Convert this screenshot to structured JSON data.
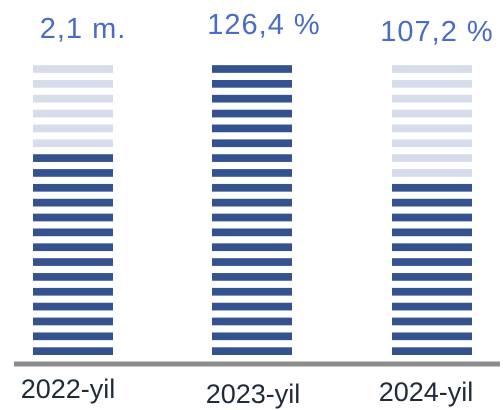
{
  "chart_data": {
    "type": "bar",
    "categories": [
      "2022-yil",
      "2023-yil",
      "2024-yil"
    ],
    "series": [
      {
        "values": [
          14,
          20,
          12
        ]
      }
    ],
    "max_value": 20,
    "data_labels": [
      "2,1 m.",
      "126,4 %",
      "107,2 %"
    ],
    "title": "",
    "xlabel": "",
    "ylabel": "",
    "legend": "none",
    "grid": false,
    "colors": {
      "filled": "#34528e",
      "empty": "#d6dce9",
      "label": "#4a6cc4",
      "axis": "#8c8c8c",
      "category": "#1f2a3a"
    }
  }
}
